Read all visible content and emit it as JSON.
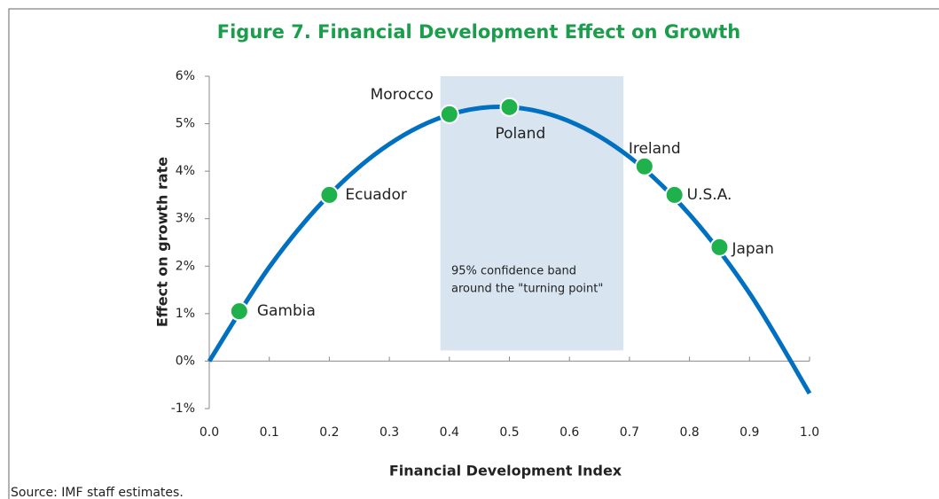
{
  "chart_data": {
    "type": "line",
    "title": "Figure 7. Financial Development Effect on Growth",
    "x_label": "Financial Development Index",
    "y_label": "Effect on growth rate",
    "source": "Source: IMF staff estimates.",
    "xlim": [
      0,
      1
    ],
    "xticks": [
      {
        "value": 0,
        "label": "0.0"
      },
      0.1,
      0.2,
      0.3,
      0.4,
      0.5,
      0.6,
      0.7,
      0.8,
      0.9,
      {
        "value": 1,
        "label": "1.0"
      }
    ],
    "ylim": [
      -1,
      6
    ],
    "yticks": [
      {
        "value": -1,
        "label": "-1%"
      },
      {
        "value": 0,
        "label": "0%"
      },
      {
        "value": 1,
        "label": "1%"
      },
      {
        "value": 2,
        "label": "2%"
      },
      {
        "value": 3,
        "label": "3%"
      },
      {
        "value": 4,
        "label": "4%"
      },
      {
        "value": 5,
        "label": "5%"
      },
      {
        "value": 6,
        "label": "6%"
      }
    ],
    "curve": {
      "color": "#0070c0",
      "x": [
        0,
        0.1,
        0.2,
        0.3,
        0.4,
        0.5,
        0.6,
        0.7,
        0.8,
        0.9,
        1.0
      ],
      "values": [
        0,
        1.98,
        3.5,
        4.57,
        5.19,
        5.35,
        5.05,
        4.3,
        3.09,
        1.43,
        -0.68
      ]
    },
    "points": {
      "color": "#1fb14b",
      "names": [
        "Gambia",
        "Ecuador",
        "Morocco",
        "Poland",
        "Ireland",
        "U.S.A.",
        "Japan"
      ],
      "x": [
        0.05,
        0.2,
        0.4,
        0.5,
        0.725,
        0.775,
        0.85
      ],
      "values": [
        1.05,
        3.5,
        5.2,
        5.35,
        4.1,
        3.5,
        2.4
      ]
    },
    "band": {
      "color": "#d8e5f1",
      "xlim": [
        0.385,
        0.69
      ],
      "label": [
        "95%  confidence band",
        "around the \"turning point\""
      ]
    }
  }
}
